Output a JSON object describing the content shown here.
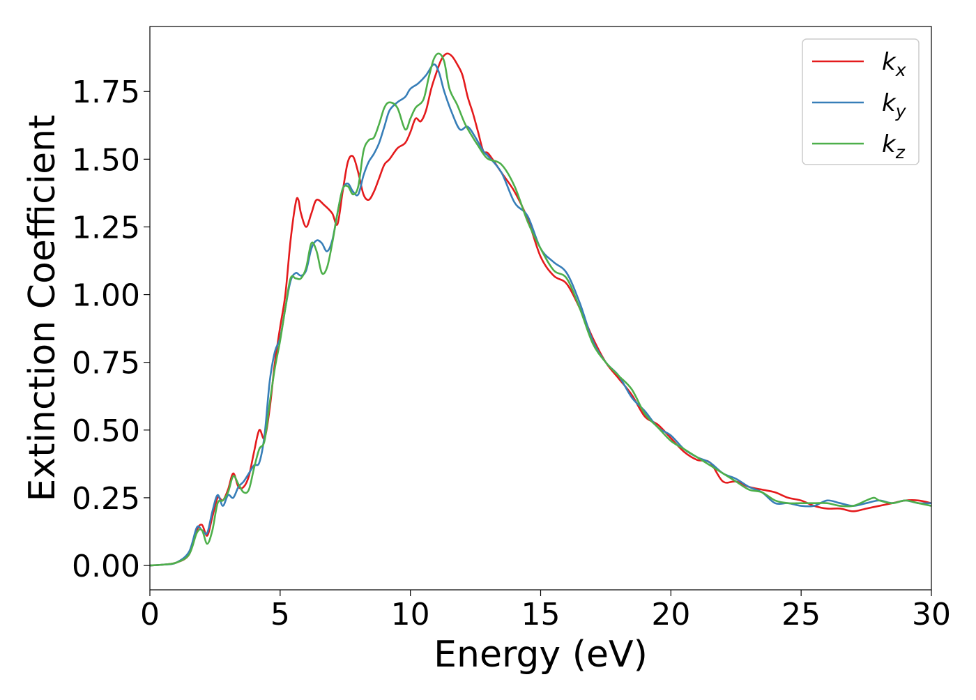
{
  "colors": {
    "kx": "#e41a1c",
    "ky": "#377eb8",
    "kz": "#4daf4a",
    "axis": "#000000",
    "background": "#ffffff"
  },
  "chart_data": {
    "type": "line",
    "title": "",
    "xlabel": "Energy (eV)",
    "ylabel": "Extinction Coefficient",
    "xlim": [
      0,
      30
    ],
    "ylim": [
      -0.09,
      1.99
    ],
    "x_ticks": [
      0,
      5,
      10,
      15,
      20,
      25,
      30
    ],
    "x_tick_labels": [
      "0",
      "5",
      "10",
      "15",
      "20",
      "25",
      "30"
    ],
    "y_ticks": [
      0.0,
      0.25,
      0.5,
      0.75,
      1.0,
      1.25,
      1.5,
      1.75
    ],
    "y_tick_labels": [
      "0.00",
      "0.25",
      "0.50",
      "0.75",
      "1.00",
      "1.25",
      "1.50",
      "1.75"
    ],
    "grid": false,
    "legend": {
      "placement": "top-right",
      "entries": [
        {
          "base": "k",
          "sub": "x"
        },
        {
          "base": "k",
          "sub": "y"
        },
        {
          "base": "k",
          "sub": "z"
        }
      ]
    },
    "series": [
      {
        "name": "kx",
        "color": "#e41a1c",
        "points": [
          [
            0,
            0
          ],
          [
            0.5,
            0.003
          ],
          [
            1,
            0.01
          ],
          [
            1.5,
            0.04
          ],
          [
            1.8,
            0.13
          ],
          [
            2.0,
            0.15
          ],
          [
            2.2,
            0.11
          ],
          [
            2.4,
            0.18
          ],
          [
            2.6,
            0.25
          ],
          [
            2.8,
            0.24
          ],
          [
            3.0,
            0.28
          ],
          [
            3.2,
            0.34
          ],
          [
            3.4,
            0.29
          ],
          [
            3.6,
            0.29
          ],
          [
            3.8,
            0.33
          ],
          [
            4.0,
            0.42
          ],
          [
            4.2,
            0.5
          ],
          [
            4.4,
            0.47
          ],
          [
            4.6,
            0.58
          ],
          [
            4.8,
            0.75
          ],
          [
            5.0,
            0.88
          ],
          [
            5.2,
            1.0
          ],
          [
            5.4,
            1.2
          ],
          [
            5.6,
            1.34
          ],
          [
            5.7,
            1.35
          ],
          [
            5.8,
            1.3
          ],
          [
            6.0,
            1.25
          ],
          [
            6.2,
            1.3
          ],
          [
            6.4,
            1.35
          ],
          [
            6.7,
            1.33
          ],
          [
            7.0,
            1.3
          ],
          [
            7.2,
            1.26
          ],
          [
            7.4,
            1.38
          ],
          [
            7.6,
            1.49
          ],
          [
            7.8,
            1.51
          ],
          [
            8.0,
            1.45
          ],
          [
            8.2,
            1.37
          ],
          [
            8.4,
            1.35
          ],
          [
            8.6,
            1.38
          ],
          [
            8.8,
            1.43
          ],
          [
            9.0,
            1.48
          ],
          [
            9.2,
            1.5
          ],
          [
            9.5,
            1.54
          ],
          [
            9.8,
            1.56
          ],
          [
            10.0,
            1.6
          ],
          [
            10.2,
            1.65
          ],
          [
            10.4,
            1.64
          ],
          [
            10.6,
            1.68
          ],
          [
            10.8,
            1.76
          ],
          [
            11.0,
            1.82
          ],
          [
            11.2,
            1.87
          ],
          [
            11.4,
            1.89
          ],
          [
            11.6,
            1.88
          ],
          [
            11.8,
            1.85
          ],
          [
            12.0,
            1.81
          ],
          [
            12.2,
            1.73
          ],
          [
            12.4,
            1.67
          ],
          [
            12.6,
            1.6
          ],
          [
            12.8,
            1.53
          ],
          [
            13.0,
            1.52
          ],
          [
            13.5,
            1.45
          ],
          [
            14.0,
            1.38
          ],
          [
            14.5,
            1.28
          ],
          [
            15.0,
            1.14
          ],
          [
            15.5,
            1.07
          ],
          [
            16.0,
            1.04
          ],
          [
            16.5,
            0.95
          ],
          [
            17.0,
            0.84
          ],
          [
            17.5,
            0.75
          ],
          [
            18.0,
            0.69
          ],
          [
            18.5,
            0.63
          ],
          [
            19.0,
            0.55
          ],
          [
            19.5,
            0.52
          ],
          [
            20.0,
            0.47
          ],
          [
            20.5,
            0.42
          ],
          [
            21.0,
            0.39
          ],
          [
            21.5,
            0.38
          ],
          [
            22.0,
            0.31
          ],
          [
            22.5,
            0.31
          ],
          [
            23.0,
            0.29
          ],
          [
            23.5,
            0.28
          ],
          [
            24.0,
            0.27
          ],
          [
            24.5,
            0.25
          ],
          [
            25.0,
            0.24
          ],
          [
            25.5,
            0.22
          ],
          [
            26.0,
            0.21
          ],
          [
            26.5,
            0.21
          ],
          [
            27.0,
            0.2
          ],
          [
            27.5,
            0.21
          ],
          [
            28.0,
            0.22
          ],
          [
            28.5,
            0.23
          ],
          [
            29.0,
            0.24
          ],
          [
            29.5,
            0.24
          ],
          [
            30.0,
            0.23
          ]
        ]
      },
      {
        "name": "ky",
        "color": "#377eb8",
        "points": [
          [
            0,
            0
          ],
          [
            0.5,
            0.003
          ],
          [
            1,
            0.01
          ],
          [
            1.5,
            0.05
          ],
          [
            1.8,
            0.14
          ],
          [
            2.0,
            0.13
          ],
          [
            2.2,
            0.12
          ],
          [
            2.4,
            0.2
          ],
          [
            2.6,
            0.26
          ],
          [
            2.8,
            0.22
          ],
          [
            3.0,
            0.26
          ],
          [
            3.2,
            0.25
          ],
          [
            3.4,
            0.29
          ],
          [
            3.6,
            0.31
          ],
          [
            3.8,
            0.34
          ],
          [
            4.0,
            0.37
          ],
          [
            4.2,
            0.38
          ],
          [
            4.4,
            0.48
          ],
          [
            4.6,
            0.68
          ],
          [
            4.8,
            0.79
          ],
          [
            5.0,
            0.84
          ],
          [
            5.2,
            0.95
          ],
          [
            5.4,
            1.05
          ],
          [
            5.6,
            1.08
          ],
          [
            5.8,
            1.07
          ],
          [
            6.0,
            1.09
          ],
          [
            6.2,
            1.17
          ],
          [
            6.4,
            1.2
          ],
          [
            6.6,
            1.19
          ],
          [
            6.8,
            1.16
          ],
          [
            7.0,
            1.2
          ],
          [
            7.2,
            1.3
          ],
          [
            7.4,
            1.39
          ],
          [
            7.6,
            1.41
          ],
          [
            7.8,
            1.38
          ],
          [
            8.0,
            1.37
          ],
          [
            8.2,
            1.44
          ],
          [
            8.4,
            1.49
          ],
          [
            8.6,
            1.52
          ],
          [
            8.8,
            1.56
          ],
          [
            9.0,
            1.62
          ],
          [
            9.2,
            1.68
          ],
          [
            9.5,
            1.71
          ],
          [
            9.8,
            1.73
          ],
          [
            10.0,
            1.76
          ],
          [
            10.3,
            1.78
          ],
          [
            10.6,
            1.81
          ],
          [
            10.9,
            1.85
          ],
          [
            11.1,
            1.82
          ],
          [
            11.3,
            1.75
          ],
          [
            11.6,
            1.67
          ],
          [
            11.9,
            1.61
          ],
          [
            12.2,
            1.62
          ],
          [
            12.5,
            1.58
          ],
          [
            12.8,
            1.53
          ],
          [
            13.0,
            1.51
          ],
          [
            13.5,
            1.45
          ],
          [
            14.0,
            1.34
          ],
          [
            14.5,
            1.29
          ],
          [
            15.0,
            1.17
          ],
          [
            15.5,
            1.12
          ],
          [
            16.0,
            1.08
          ],
          [
            16.5,
            0.97
          ],
          [
            17.0,
            0.83
          ],
          [
            17.5,
            0.75
          ],
          [
            18.0,
            0.7
          ],
          [
            18.5,
            0.62
          ],
          [
            19.0,
            0.57
          ],
          [
            19.5,
            0.51
          ],
          [
            20.0,
            0.48
          ],
          [
            20.5,
            0.43
          ],
          [
            21.0,
            0.4
          ],
          [
            21.5,
            0.38
          ],
          [
            22.0,
            0.34
          ],
          [
            22.5,
            0.32
          ],
          [
            23.0,
            0.29
          ],
          [
            23.5,
            0.27
          ],
          [
            24.0,
            0.23
          ],
          [
            24.5,
            0.23
          ],
          [
            25.0,
            0.22
          ],
          [
            25.5,
            0.22
          ],
          [
            26.0,
            0.24
          ],
          [
            26.5,
            0.23
          ],
          [
            27.0,
            0.22
          ],
          [
            27.5,
            0.23
          ],
          [
            28.0,
            0.24
          ],
          [
            28.5,
            0.23
          ],
          [
            29.0,
            0.24
          ],
          [
            29.5,
            0.23
          ],
          [
            30.0,
            0.23
          ]
        ]
      },
      {
        "name": "kz",
        "color": "#4daf4a",
        "points": [
          [
            0,
            0
          ],
          [
            0.5,
            0.003
          ],
          [
            1,
            0.01
          ],
          [
            1.5,
            0.04
          ],
          [
            1.8,
            0.12
          ],
          [
            2.0,
            0.13
          ],
          [
            2.2,
            0.08
          ],
          [
            2.4,
            0.13
          ],
          [
            2.6,
            0.23
          ],
          [
            2.8,
            0.24
          ],
          [
            3.0,
            0.27
          ],
          [
            3.2,
            0.33
          ],
          [
            3.4,
            0.3
          ],
          [
            3.6,
            0.27
          ],
          [
            3.8,
            0.28
          ],
          [
            4.0,
            0.36
          ],
          [
            4.2,
            0.43
          ],
          [
            4.4,
            0.46
          ],
          [
            4.6,
            0.6
          ],
          [
            4.8,
            0.73
          ],
          [
            5.0,
            0.83
          ],
          [
            5.2,
            0.95
          ],
          [
            5.4,
            1.06
          ],
          [
            5.6,
            1.06
          ],
          [
            5.8,
            1.06
          ],
          [
            6.0,
            1.1
          ],
          [
            6.2,
            1.19
          ],
          [
            6.4,
            1.16
          ],
          [
            6.6,
            1.08
          ],
          [
            6.8,
            1.1
          ],
          [
            7.0,
            1.19
          ],
          [
            7.2,
            1.3
          ],
          [
            7.4,
            1.39
          ],
          [
            7.6,
            1.4
          ],
          [
            7.8,
            1.37
          ],
          [
            8.0,
            1.4
          ],
          [
            8.2,
            1.53
          ],
          [
            8.4,
            1.57
          ],
          [
            8.6,
            1.58
          ],
          [
            8.8,
            1.63
          ],
          [
            9.0,
            1.69
          ],
          [
            9.2,
            1.71
          ],
          [
            9.5,
            1.69
          ],
          [
            9.8,
            1.61
          ],
          [
            10.0,
            1.65
          ],
          [
            10.2,
            1.69
          ],
          [
            10.5,
            1.72
          ],
          [
            10.7,
            1.8
          ],
          [
            10.9,
            1.87
          ],
          [
            11.1,
            1.89
          ],
          [
            11.3,
            1.86
          ],
          [
            11.5,
            1.76
          ],
          [
            11.8,
            1.7
          ],
          [
            12.1,
            1.63
          ],
          [
            12.4,
            1.58
          ],
          [
            12.6,
            1.55
          ],
          [
            12.8,
            1.52
          ],
          [
            13.0,
            1.5
          ],
          [
            13.5,
            1.48
          ],
          [
            14.0,
            1.4
          ],
          [
            14.5,
            1.27
          ],
          [
            15.0,
            1.17
          ],
          [
            15.5,
            1.09
          ],
          [
            16.0,
            1.06
          ],
          [
            16.5,
            0.95
          ],
          [
            17.0,
            0.82
          ],
          [
            17.5,
            0.75
          ],
          [
            18.0,
            0.7
          ],
          [
            18.5,
            0.65
          ],
          [
            19.0,
            0.56
          ],
          [
            19.5,
            0.51
          ],
          [
            20.0,
            0.46
          ],
          [
            20.5,
            0.43
          ],
          [
            21.0,
            0.4
          ],
          [
            21.5,
            0.37
          ],
          [
            22.0,
            0.34
          ],
          [
            22.5,
            0.31
          ],
          [
            23.0,
            0.28
          ],
          [
            23.5,
            0.27
          ],
          [
            24.0,
            0.24
          ],
          [
            24.5,
            0.23
          ],
          [
            25.0,
            0.23
          ],
          [
            25.5,
            0.23
          ],
          [
            26.0,
            0.23
          ],
          [
            26.5,
            0.22
          ],
          [
            27.0,
            0.22
          ],
          [
            27.5,
            0.24
          ],
          [
            27.8,
            0.25
          ],
          [
            28.0,
            0.24
          ],
          [
            28.5,
            0.23
          ],
          [
            29.0,
            0.24
          ],
          [
            29.5,
            0.23
          ],
          [
            30.0,
            0.22
          ]
        ]
      }
    ]
  }
}
